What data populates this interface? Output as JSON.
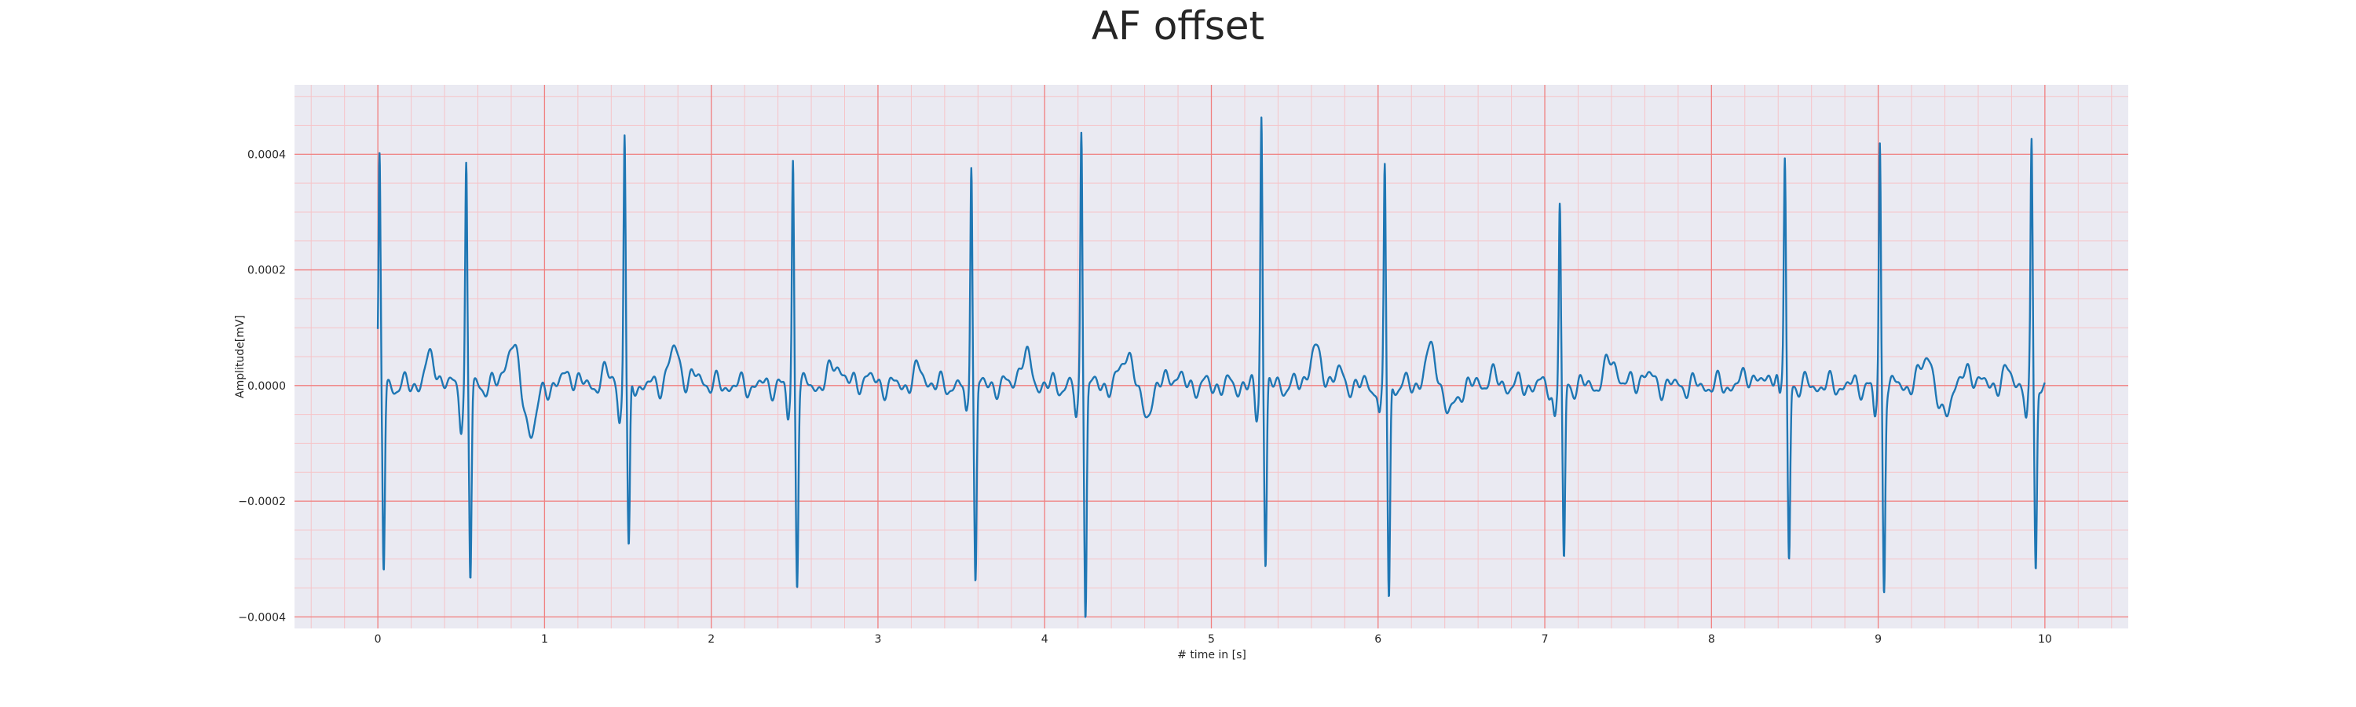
{
  "chart_data": {
    "type": "line",
    "title": "AF offset",
    "xlabel": "# time in [s]",
    "ylabel": "Amplitude[mV]",
    "xlim": [
      -0.5,
      10.5
    ],
    "ylim": [
      -0.00042,
      0.00052
    ],
    "grid": true,
    "x_ticks": [
      0,
      1,
      2,
      3,
      4,
      5,
      6,
      7,
      8,
      9,
      10
    ],
    "x_tick_labels": [
      "0",
      "1",
      "2",
      "3",
      "4",
      "5",
      "6",
      "7",
      "8",
      "9",
      "10"
    ],
    "y_ticks": [
      -0.0004,
      -0.0002,
      0.0,
      0.0002,
      0.0004
    ],
    "y_tick_labels": [
      "−0.0004",
      "−0.0002",
      "0.0000",
      "0.0002",
      "0.0004"
    ],
    "colors": {
      "line": "#1f77b4",
      "plot_bg": "#eaeaf2",
      "grid_major": "#f08080",
      "grid_minor": "#f6c4c8"
    },
    "series": [
      {
        "r_peaks": [
          {
            "t": 0.01,
            "r": 0.000385,
            "s": -0.00032
          },
          {
            "t": 0.53,
            "r": 0.000375,
            "s": -0.000335
          },
          {
            "t": 1.48,
            "r": 0.000435,
            "s": -0.0003
          },
          {
            "t": 2.49,
            "r": 0.00039,
            "s": -0.00033
          },
          {
            "t": 3.56,
            "r": 0.0004,
            "s": -0.000335
          },
          {
            "t": 4.22,
            "r": 0.000445,
            "s": -0.000385
          },
          {
            "t": 5.3,
            "r": 0.00048,
            "s": -0.00031
          },
          {
            "t": 6.04,
            "r": 0.000385,
            "s": -0.000375
          },
          {
            "t": 7.09,
            "r": 0.000315,
            "s": -0.00031
          },
          {
            "t": 8.44,
            "r": 0.00037,
            "s": -0.00031
          },
          {
            "t": 9.01,
            "r": 0.000415,
            "s": -0.000345
          },
          {
            "t": 9.92,
            "r": 0.000415,
            "s": -0.00031
          }
        ],
        "baseline_waves": [
          {
            "t": 0.32,
            "a": 4.5e-05
          },
          {
            "t": 0.8,
            "a": 7e-05
          },
          {
            "t": 0.92,
            "a": -8e-05
          },
          {
            "t": 1.15,
            "a": 2e-05
          },
          {
            "t": 1.38,
            "a": 2e-05
          },
          {
            "t": 1.78,
            "a": 6e-05
          },
          {
            "t": 1.92,
            "a": 1.5e-05
          },
          {
            "t": 2.75,
            "a": 4e-05
          },
          {
            "t": 2.93,
            "a": 1.5e-05
          },
          {
            "t": 3.25,
            "a": 2.5e-05
          },
          {
            "t": 3.88,
            "a": 5e-05
          },
          {
            "t": 4.5,
            "a": 6e-05
          },
          {
            "t": 4.6,
            "a": -5e-05
          },
          {
            "t": 4.77,
            "a": 2e-05
          },
          {
            "t": 5.62,
            "a": 6e-05
          },
          {
            "t": 5.75,
            "a": 2e-05
          },
          {
            "t": 6.32,
            "a": 6e-05
          },
          {
            "t": 6.43,
            "a": -5e-05
          },
          {
            "t": 6.68,
            "a": 1.5e-05
          },
          {
            "t": 7.4,
            "a": 4.5e-05
          },
          {
            "t": 7.6,
            "a": 2e-05
          },
          {
            "t": 8.23,
            "a": 2e-05
          },
          {
            "t": 8.4,
            "a": 3.5e-05
          },
          {
            "t": 9.3,
            "a": 6e-05
          },
          {
            "t": 9.38,
            "a": -6e-05
          },
          {
            "t": 9.55,
            "a": 2.5e-05
          },
          {
            "t": 9.78,
            "a": 2e-05
          }
        ]
      }
    ]
  }
}
